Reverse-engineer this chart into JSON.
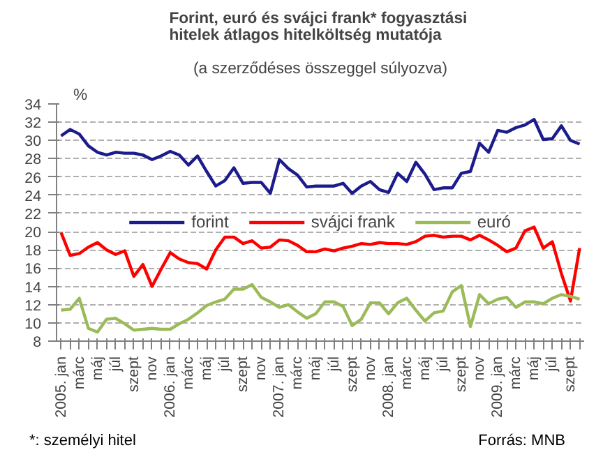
{
  "chart_data": {
    "type": "line",
    "title": "Forint, euró és svájci frank*  fogyasztási\nhitelek átlagos hitelköltség mutatója",
    "subtitle": "(a szerződéses összeggel súlyozva)",
    "ylabel": "%",
    "categories": [
      "2005. jan",
      null,
      "márc",
      null,
      "máj",
      null,
      "júl",
      null,
      "szept",
      null,
      "nov",
      null,
      "2006. jan",
      null,
      "márc",
      null,
      "máj",
      null,
      "júl",
      null,
      "szept",
      null,
      "nov",
      null,
      "2007. jan",
      null,
      "márc",
      null,
      "máj",
      null,
      "júl",
      null,
      "szept",
      null,
      "nov",
      null,
      "2008. jan",
      null,
      "márc",
      null,
      "máj",
      null,
      "júl",
      null,
      "szept",
      null,
      "nov",
      null,
      "2009. jan",
      null,
      "márc",
      null,
      "máj",
      null,
      "júl",
      null,
      "szept",
      null
    ],
    "series": [
      {
        "name": "forint",
        "color": "#1c1c8c",
        "values": [
          30.5,
          31.2,
          30.7,
          29.4,
          28.7,
          28.4,
          28.7,
          28.6,
          28.6,
          28.4,
          27.9,
          28.3,
          28.8,
          28.4,
          27.3,
          28.3,
          26.6,
          25.0,
          25.6,
          27.0,
          25.3,
          25.4,
          25.4,
          24.2,
          27.9,
          26.9,
          26.2,
          24.9,
          25.0,
          25.0,
          25.0,
          25.3,
          24.2,
          25.0,
          25.5,
          24.6,
          24.3,
          26.4,
          25.5,
          27.6,
          26.3,
          24.6,
          24.8,
          24.8,
          26.4,
          26.6,
          29.7,
          28.7,
          31.1,
          30.9,
          31.4,
          31.7,
          32.3,
          30.1,
          30.2,
          31.6,
          30.0,
          29.6
        ]
      },
      {
        "name": "svájci frank",
        "color": "#ff0000",
        "values": [
          19.9,
          17.4,
          17.6,
          18.3,
          18.8,
          18.0,
          17.5,
          17.9,
          15.1,
          16.4,
          14.0,
          15.9,
          17.7,
          17.0,
          16.6,
          16.5,
          15.9,
          18.0,
          19.4,
          19.4,
          18.7,
          19.0,
          18.2,
          18.3,
          19.1,
          19.0,
          18.5,
          17.8,
          17.8,
          18.1,
          17.9,
          18.2,
          18.4,
          18.7,
          18.6,
          18.8,
          18.7,
          18.7,
          18.6,
          18.9,
          19.5,
          19.6,
          19.4,
          19.5,
          19.5,
          19.1,
          19.6,
          19.1,
          18.5,
          17.8,
          18.2,
          20.1,
          20.5,
          18.2,
          18.9,
          15.4,
          12.4,
          18.2
        ]
      },
      {
        "name": "euró",
        "color": "#9bbb59",
        "values": [
          11.4,
          11.5,
          12.7,
          9.4,
          9.0,
          10.4,
          10.5,
          9.9,
          9.2,
          9.3,
          9.4,
          9.3,
          9.3,
          9.9,
          10.4,
          11.1,
          11.9,
          12.3,
          12.6,
          13.7,
          13.7,
          14.2,
          12.8,
          12.3,
          11.7,
          12.0,
          11.2,
          10.5,
          11.0,
          12.3,
          12.3,
          11.8,
          9.7,
          10.4,
          12.2,
          12.2,
          11.0,
          12.2,
          12.7,
          11.4,
          10.2,
          11.1,
          11.3,
          13.4,
          14.1,
          9.6,
          13.1,
          12.1,
          12.6,
          12.8,
          11.7,
          12.3,
          12.3,
          12.1,
          12.7,
          13.1,
          12.9,
          12.6
        ]
      }
    ],
    "ylim": [
      8,
      34
    ],
    "yticks": [
      8,
      10,
      12,
      14,
      16,
      18,
      20,
      22,
      24,
      26,
      28,
      30,
      32,
      34
    ],
    "grid": "y",
    "legend": "center",
    "marker": "none",
    "line_style": "solid",
    "annotations": [
      "*: személyi hitel",
      "Forrás: MNB"
    ]
  }
}
